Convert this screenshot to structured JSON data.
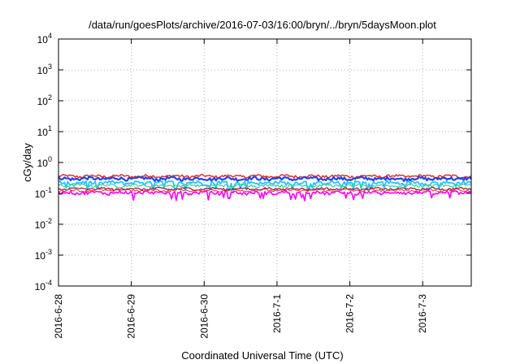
{
  "chart_data": {
    "type": "line",
    "title": "/data/run/goesPlots/archive/2016-07-03/16:00/bryn/../bryn/5daysMoon.plot",
    "xlabel": "Coordinated Universal Time (UTC)",
    "ylabel": "cGy/day",
    "y_scale": "log",
    "ylim": [
      0.0001,
      10000
    ],
    "y_ticks": [
      {
        "value": 0.0001,
        "base": "10",
        "exp": "-4"
      },
      {
        "value": 0.001,
        "base": "10",
        "exp": "-3"
      },
      {
        "value": 0.01,
        "base": "10",
        "exp": "-2"
      },
      {
        "value": 0.1,
        "base": "10",
        "exp": "-1"
      },
      {
        "value": 1,
        "base": "10",
        "exp": "0"
      },
      {
        "value": 10,
        "base": "10",
        "exp": "1"
      },
      {
        "value": 100,
        "base": "10",
        "exp": "2"
      },
      {
        "value": 1000,
        "base": "10",
        "exp": "3"
      },
      {
        "value": 10000,
        "base": "10",
        "exp": "4"
      }
    ],
    "xlim": [
      "2016-06-28T00:00",
      "2016-07-03T16:00"
    ],
    "x_ticks": [
      "2016-6-28",
      "2016-6-29",
      "2016-6-30",
      "2016-7-1",
      "2016-7-2",
      "2016-7-3"
    ],
    "x_tick_values": [
      "2016-06-28",
      "2016-06-29",
      "2016-06-30",
      "2016-07-01",
      "2016-07-02",
      "2016-07-03"
    ],
    "grid": true,
    "series": [
      {
        "color": "#e8211a",
        "base": 0.36,
        "noise": 0.1,
        "dips": false,
        "width": 1.4
      },
      {
        "color": "#2244ee",
        "base": 0.3,
        "noise": 0.12,
        "dips": false,
        "width": 2.2
      },
      {
        "color": "#29c2ff",
        "base": 0.22,
        "noise": 0.14,
        "dips": true,
        "width": 1.8
      },
      {
        "color": "#33d29a",
        "base": 0.18,
        "noise": 0.1,
        "dips": false,
        "width": 1.2
      },
      {
        "color": "#7a1a3a",
        "base": 0.14,
        "noise": 0.08,
        "dips": false,
        "width": 1.2
      },
      {
        "color": "#ff2a2a",
        "base": 0.125,
        "noise": 0.08,
        "dips": false,
        "width": 1.0
      },
      {
        "color": "#ff00ff",
        "base": 0.105,
        "noise": 0.12,
        "dips": true,
        "width": 1.6
      }
    ]
  }
}
